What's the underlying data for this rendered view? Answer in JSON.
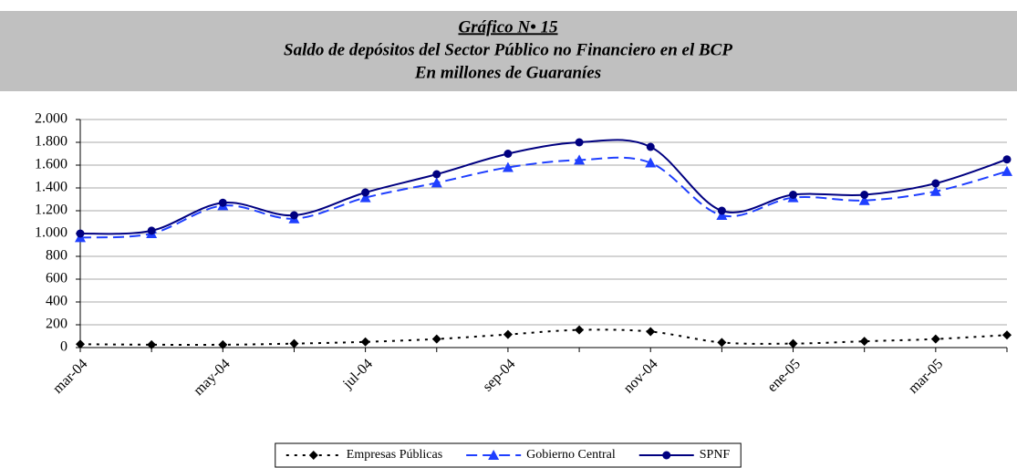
{
  "chart_data": {
    "type": "line",
    "title": "Gráfico N• 15",
    "subtitle": [
      "Saldo de depósitos  del Sector Público no Financiero en el BCP",
      "En millones de Guaraníes"
    ],
    "categories": [
      "mar-04",
      null,
      "may-04",
      null,
      "jul-04",
      null,
      "sep-04",
      null,
      "nov-04",
      null,
      "ene-05",
      null,
      "mar-05",
      null
    ],
    "series": [
      {
        "name": "Empresas Públicas",
        "color": "#000000",
        "style": "dotted",
        "marker": "diamond",
        "values": [
          30,
          25,
          25,
          35,
          50,
          75,
          115,
          155,
          140,
          45,
          35,
          55,
          75,
          110
        ]
      },
      {
        "name": "Gobierno Central",
        "color": "#1f3fff",
        "style": "dashed",
        "marker": "triangle",
        "values": [
          965,
          1000,
          1245,
          1130,
          1315,
          1445,
          1580,
          1645,
          1620,
          1160,
          1315,
          1290,
          1370,
          1545
        ]
      },
      {
        "name": "SPNF",
        "color": "#000080",
        "style": "solid",
        "marker": "circle",
        "values": [
          1000,
          1025,
          1270,
          1160,
          1360,
          1520,
          1700,
          1800,
          1760,
          1200,
          1340,
          1340,
          1440,
          1650
        ]
      }
    ],
    "ylim": [
      0,
      2000
    ],
    "yticks": [
      0,
      200,
      400,
      600,
      800,
      {
        "value": 1000,
        "label": "1.000"
      },
      {
        "value": 1200,
        "label": "1.200"
      },
      {
        "value": 1400,
        "label": "1.400"
      },
      {
        "value": 1600,
        "label": "1.600"
      },
      {
        "value": 1800,
        "label": "1.800"
      },
      {
        "value": 2000,
        "label": "2.000"
      }
    ],
    "grid": true,
    "smooth": true,
    "legend": "bottom"
  }
}
